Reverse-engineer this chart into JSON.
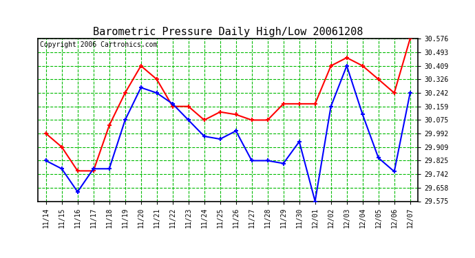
{
  "title": "Barometric Pressure Daily High/Low 20061208",
  "copyright": "Copyright 2006 Cartronics.com",
  "x_labels": [
    "11/14",
    "11/15",
    "11/16",
    "11/17",
    "11/18",
    "11/19",
    "11/20",
    "11/21",
    "11/22",
    "11/23",
    "11/24",
    "11/25",
    "11/26",
    "11/27",
    "11/28",
    "11/29",
    "11/30",
    "12/01",
    "12/02",
    "12/03",
    "12/04",
    "12/05",
    "12/06",
    "12/07"
  ],
  "high_values": [
    29.992,
    29.909,
    29.762,
    29.762,
    30.042,
    30.242,
    30.409,
    30.326,
    30.159,
    30.159,
    30.075,
    30.125,
    30.109,
    30.075,
    30.075,
    30.175,
    30.175,
    30.175,
    30.409,
    30.459,
    30.409,
    30.326,
    30.242,
    30.576
  ],
  "low_values": [
    29.825,
    29.775,
    29.633,
    29.775,
    29.775,
    30.075,
    30.275,
    30.242,
    30.175,
    30.075,
    29.975,
    29.958,
    30.008,
    29.825,
    29.825,
    29.808,
    29.942,
    29.575,
    30.159,
    30.409,
    30.109,
    29.842,
    29.758,
    30.242
  ],
  "y_ticks": [
    29.575,
    29.658,
    29.742,
    29.825,
    29.909,
    29.992,
    30.075,
    30.159,
    30.242,
    30.326,
    30.409,
    30.493,
    30.576
  ],
  "high_color": "#ff0000",
  "low_color": "#0000ff",
  "bg_color": "#ffffff",
  "plot_bg_color": "#ffffff",
  "grid_color": "#00bb00",
  "title_fontsize": 11,
  "copyright_fontsize": 7
}
